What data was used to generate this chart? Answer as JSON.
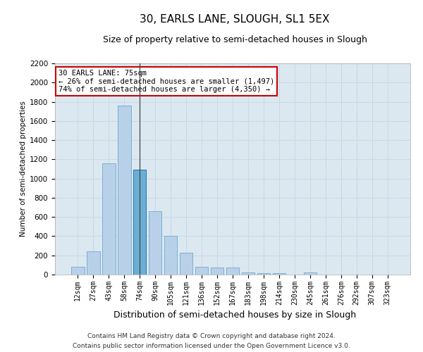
{
  "title": "30, EARLS LANE, SLOUGH, SL1 5EX",
  "subtitle": "Size of property relative to semi-detached houses in Slough",
  "xlabel": "Distribution of semi-detached houses by size in Slough",
  "ylabel": "Number of semi-detached properties",
  "categories": [
    "12sqm",
    "27sqm",
    "43sqm",
    "58sqm",
    "74sqm",
    "90sqm",
    "105sqm",
    "121sqm",
    "136sqm",
    "152sqm",
    "167sqm",
    "183sqm",
    "198sqm",
    "214sqm",
    "230sqm",
    "245sqm",
    "261sqm",
    "276sqm",
    "292sqm",
    "307sqm",
    "323sqm"
  ],
  "values": [
    80,
    240,
    1160,
    1760,
    1090,
    660,
    400,
    230,
    80,
    70,
    70,
    25,
    15,
    15,
    0,
    20,
    0,
    0,
    0,
    0,
    0
  ],
  "bar_color": "#b8d0e8",
  "bar_edge_color": "#7aafd4",
  "highlight_bar_index": 4,
  "highlight_bar_color": "#6baed6",
  "highlight_bar_edge_color": "#2171b5",
  "annotation_title": "30 EARLS LANE: 75sqm",
  "annotation_line1": "← 26% of semi-detached houses are smaller (1,497)",
  "annotation_line2": "74% of semi-detached houses are larger (4,350) →",
  "annotation_box_facecolor": "#ffffff",
  "annotation_box_edgecolor": "#cc0000",
  "ylim_max": 2200,
  "yticks": [
    0,
    200,
    400,
    600,
    800,
    1000,
    1200,
    1400,
    1600,
    1800,
    2000,
    2200
  ],
  "grid_color": "#c8d8e8",
  "plot_bg_color": "#dce8f0",
  "footer_line1": "Contains HM Land Registry data © Crown copyright and database right 2024.",
  "footer_line2": "Contains public sector information licensed under the Open Government Licence v3.0."
}
